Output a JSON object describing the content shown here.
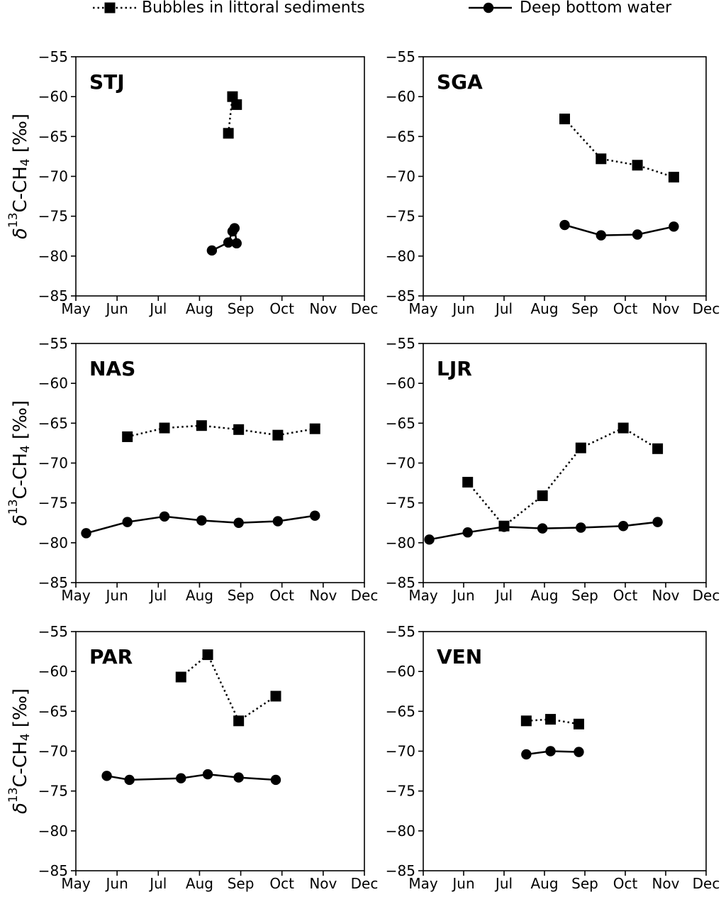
{
  "chart_data": [
    {
      "type": "line",
      "title": "STJ",
      "ylabel": "δ13C-CH4 [‰]",
      "ylim": [
        -85,
        -55
      ],
      "yticks": [
        -85,
        -80,
        -75,
        -70,
        -65,
        -60,
        -55
      ],
      "xlim": [
        0,
        7
      ],
      "x_tick_labels": [
        "May",
        "Jun",
        "Jul",
        "Aug",
        "Sep",
        "Oct",
        "Nov",
        "Dec"
      ],
      "series": [
        {
          "name": "Bubbles in littoral sediments",
          "style": "dotted-square",
          "x": [
            3.7,
            3.8,
            3.9
          ],
          "y": [
            -64.6,
            -60.0,
            -61.0
          ]
        },
        {
          "name": "Deep bottom water",
          "style": "solid-circle",
          "x": [
            3.3,
            3.7,
            3.8,
            3.85,
            3.9
          ],
          "y": [
            -79.3,
            -78.3,
            -76.9,
            -76.5,
            -78.4
          ]
        }
      ]
    },
    {
      "type": "line",
      "title": "SGA",
      "ylabel": "",
      "ylim": [
        -85,
        -55
      ],
      "yticks": [
        -85,
        -80,
        -75,
        -70,
        -65,
        -60,
        -55
      ],
      "xlim": [
        0,
        7
      ],
      "x_tick_labels": [
        "May",
        "Jun",
        "Jul",
        "Aug",
        "Sep",
        "Oct",
        "Nov",
        "Dec"
      ],
      "series": [
        {
          "name": "Bubbles in littoral sediments",
          "style": "dotted-square",
          "x": [
            3.5,
            4.4,
            5.3,
            6.2
          ],
          "y": [
            -62.8,
            -67.8,
            -68.6,
            -70.1
          ]
        },
        {
          "name": "Deep bottom water",
          "style": "solid-circle",
          "x": [
            3.5,
            4.4,
            5.3,
            6.2
          ],
          "y": [
            -76.1,
            -77.4,
            -77.3,
            -76.3
          ]
        }
      ]
    },
    {
      "type": "line",
      "title": "NAS",
      "ylabel": "δ13C-CH4 [‰]",
      "ylim": [
        -85,
        -55
      ],
      "yticks": [
        -85,
        -80,
        -75,
        -70,
        -65,
        -60,
        -55
      ],
      "xlim": [
        0,
        7
      ],
      "x_tick_labels": [
        "May",
        "Jun",
        "Jul",
        "Aug",
        "Sep",
        "Oct",
        "Nov",
        "Dec"
      ],
      "series": [
        {
          "name": "Bubbles in littoral sediments",
          "style": "dotted-square",
          "x": [
            1.25,
            2.15,
            3.05,
            3.95,
            4.9,
            5.8
          ],
          "y": [
            -66.7,
            -65.6,
            -65.3,
            -65.8,
            -66.5,
            -65.7
          ]
        },
        {
          "name": "Deep bottom water",
          "style": "solid-circle",
          "x": [
            0.25,
            1.25,
            2.15,
            3.05,
            3.95,
            4.9,
            5.8
          ],
          "y": [
            -78.8,
            -77.4,
            -76.7,
            -77.2,
            -77.5,
            -77.3,
            -76.6
          ]
        }
      ]
    },
    {
      "type": "line",
      "title": "LJR",
      "ylabel": "",
      "ylim": [
        -85,
        -55
      ],
      "yticks": [
        -85,
        -80,
        -75,
        -70,
        -65,
        -60,
        -55
      ],
      "xlim": [
        0,
        7
      ],
      "x_tick_labels": [
        "May",
        "Jun",
        "Jul",
        "Aug",
        "Sep",
        "Oct",
        "Nov",
        "Dec"
      ],
      "series": [
        {
          "name": "Bubbles in littoral sediments",
          "style": "dotted-square",
          "x": [
            1.1,
            2.0,
            2.95,
            3.9,
            4.95,
            5.8
          ],
          "y": [
            -72.4,
            -77.9,
            -74.1,
            -68.1,
            -65.6,
            -68.2
          ]
        },
        {
          "name": "Deep bottom water",
          "style": "solid-circle",
          "x": [
            0.15,
            1.1,
            2.0,
            2.95,
            3.9,
            4.95,
            5.8
          ],
          "y": [
            -79.6,
            -78.7,
            -78.0,
            -78.2,
            -78.1,
            -77.9,
            -77.4
          ]
        }
      ]
    },
    {
      "type": "line",
      "title": "PAR",
      "ylabel": "δ13C-CH4 [‰]",
      "ylim": [
        -85,
        -55
      ],
      "yticks": [
        -85,
        -80,
        -75,
        -70,
        -65,
        -60,
        -55
      ],
      "xlim": [
        0,
        7
      ],
      "x_tick_labels": [
        "May",
        "Jun",
        "Jul",
        "Aug",
        "Sep",
        "Oct",
        "Nov",
        "Dec"
      ],
      "series": [
        {
          "name": "Bubbles in littoral sediments",
          "style": "dotted-square",
          "x": [
            2.55,
            3.2,
            3.95,
            4.85
          ],
          "y": [
            -60.7,
            -57.9,
            -66.2,
            -63.1
          ]
        },
        {
          "name": "Deep bottom water",
          "style": "solid-circle",
          "x": [
            0.75,
            1.3,
            2.55,
            3.2,
            3.95,
            4.85
          ],
          "y": [
            -73.1,
            -73.6,
            -73.4,
            -72.9,
            -73.3,
            -73.6
          ]
        }
      ]
    },
    {
      "type": "line",
      "title": "VEN",
      "ylabel": "",
      "ylim": [
        -85,
        -55
      ],
      "yticks": [
        -85,
        -80,
        -75,
        -70,
        -65,
        -60,
        -55
      ],
      "xlim": [
        0,
        7
      ],
      "x_tick_labels": [
        "May",
        "Jun",
        "Jul",
        "Aug",
        "Sep",
        "Oct",
        "Nov",
        "Dec"
      ],
      "series": [
        {
          "name": "Bubbles in littoral sediments",
          "style": "dotted-square",
          "x": [
            2.55,
            3.15,
            3.85
          ],
          "y": [
            -66.2,
            -66.0,
            -66.6
          ]
        },
        {
          "name": "Deep bottom water",
          "style": "solid-circle",
          "x": [
            2.55,
            3.15,
            3.85
          ],
          "y": [
            -70.4,
            -70.0,
            -70.1
          ]
        }
      ]
    }
  ],
  "legend": [
    {
      "label": "Bubbles in littoral sediments",
      "style": "dotted-square"
    },
    {
      "label": "Deep bottom water",
      "style": "solid-circle"
    }
  ],
  "colors": {
    "ink": "#000000",
    "background": "#ffffff"
  }
}
